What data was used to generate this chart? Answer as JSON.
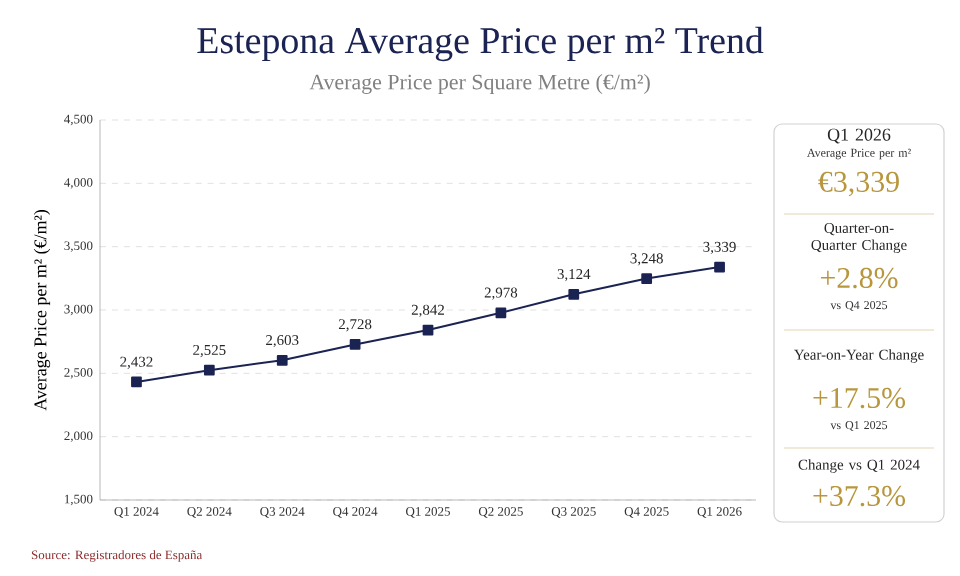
{
  "chart_data": [
    {
      "type": "line",
      "title": "Estepona Average Price per m² Trend",
      "subtitle": "Average Price per Square Metre (€/m²)",
      "ylabel": "Average Price per m² (€/m²)",
      "categories": [
        "Q1 2024",
        "Q2 2024",
        "Q3 2024",
        "Q4 2024",
        "Q1 2025",
        "Q2 2025",
        "Q3 2025",
        "Q4 2025",
        "Q1 2026"
      ],
      "series": [
        {
          "color": "#1b2353",
          "values": [
            2432,
            2525,
            2603,
            2728,
            2842,
            2978,
            3124,
            3248,
            3339
          ],
          "value_labels": [
            "2,432",
            "2,525",
            "2,603",
            "2,728",
            "2,842",
            "2,978",
            "3,124",
            "3,248",
            "3,339"
          ]
        }
      ],
      "ylim": [
        1500,
        4500
      ],
      "yticks": [
        {
          "value": 1500,
          "label": "1,500"
        },
        {
          "value": 2000,
          "label": "2,000"
        },
        {
          "value": 2500,
          "label": "2,500"
        },
        {
          "value": 3000,
          "label": "3,000"
        },
        {
          "value": 3500,
          "label": "3,500"
        },
        {
          "value": 4000,
          "label": "4,000"
        },
        {
          "value": 4500,
          "label": "4,500"
        }
      ],
      "grid": "y",
      "marker": "square",
      "line_style": "solid",
      "annotations": [
        "Source: Registradores de España"
      ]
    },
    {
      "type": "other",
      "annotations": [
        "Q1 2026",
        "Average Price per m²",
        "€3,339",
        "Quarter-on-Quarter Change",
        "+2.8%",
        "vs Q4 2025",
        "Year-on-Year Change",
        "+17.5%",
        "vs Q1 2025",
        "Change vs Q1 2024",
        "+37.3%"
      ]
    }
  ]
}
